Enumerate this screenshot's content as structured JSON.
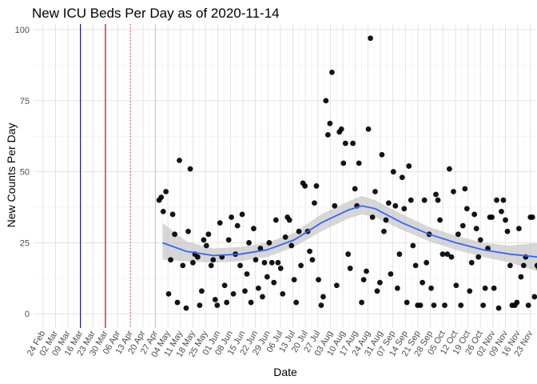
{
  "chart_data": {
    "type": "scatter",
    "title": "New ICU Beds Per Day as of 2020-11-14",
    "xlabel": "Date",
    "ylabel": "New Counts Per Day",
    "ylim": [
      -5,
      102
    ],
    "y_ticks": [
      0,
      25,
      50,
      75,
      100
    ],
    "x_ticks": [
      "24 Feb",
      "02 Mar",
      "09 Mar",
      "16 Mar",
      "23 Mar",
      "30 Mar",
      "06 Apr",
      "13 Apr",
      "20 Apr",
      "27 Apr",
      "04 May",
      "11 May",
      "18 May",
      "25 May",
      "01 Jun",
      "08 Jun",
      "15 Jun",
      "22 Jun",
      "29 Jun",
      "06 Jul",
      "13 Jul",
      "20 Jul",
      "27 Jul",
      "03 Aug",
      "10 Aug",
      "17 Aug",
      "24 Aug",
      "31 Aug",
      "07 Sep",
      "14 Sep",
      "21 Sep",
      "28 Sep",
      "05 Oct",
      "12 Oct",
      "19 Oct",
      "26 Oct",
      "02 Nov",
      "09 Nov",
      "16 Nov",
      "23 Nov"
    ],
    "grid": true,
    "vlines": [
      {
        "label": "16 Mar",
        "color": "#191970",
        "style": "solid"
      },
      {
        "label": "30 Mar",
        "color": "#cc0000",
        "style": "solid"
      },
      {
        "label": "13 Apr",
        "color": "#e05050",
        "style": "dotted"
      },
      {
        "label": "27 Apr",
        "color": "#f4b0b0",
        "style": "solid"
      }
    ],
    "colors": {
      "points": "#000000",
      "smooth_line": "#3366ff",
      "ribbon": "#bebebe"
    },
    "points": [
      {
        "x": 26.0,
        "y": 40
      },
      {
        "x": 26.3,
        "y": 41
      },
      {
        "x": 26.6,
        "y": 36
      },
      {
        "x": 27.0,
        "y": 43
      },
      {
        "x": 27.4,
        "y": 7
      },
      {
        "x": 27.7,
        "y": 19
      },
      {
        "x": 28.0,
        "y": 35
      },
      {
        "x": 28.3,
        "y": 28
      },
      {
        "x": 28.7,
        "y": 4
      },
      {
        "x": 29.0,
        "y": 54
      },
      {
        "x": 29.5,
        "y": 17
      },
      {
        "x": 30.0,
        "y": 2
      },
      {
        "x": 30.3,
        "y": 29
      },
      {
        "x": 30.6,
        "y": 51
      },
      {
        "x": 31.0,
        "y": 18
      },
      {
        "x": 31.3,
        "y": 21
      },
      {
        "x": 31.7,
        "y": 20
      },
      {
        "x": 32.0,
        "y": 3
      },
      {
        "x": 32.3,
        "y": 8
      },
      {
        "x": 32.6,
        "y": 26
      },
      {
        "x": 33.0,
        "y": 24
      },
      {
        "x": 33.3,
        "y": 28
      },
      {
        "x": 33.7,
        "y": 17
      },
      {
        "x": 34.0,
        "y": 19
      },
      {
        "x": 34.3,
        "y": 5
      },
      {
        "x": 34.6,
        "y": 3
      },
      {
        "x": 35.0,
        "y": 32
      },
      {
        "x": 35.3,
        "y": 20
      },
      {
        "x": 35.7,
        "y": 10
      },
      {
        "x": 36.0,
        "y": 4
      },
      {
        "x": 36.3,
        "y": 26
      },
      {
        "x": 36.7,
        "y": 34
      },
      {
        "x": 37.0,
        "y": 7
      },
      {
        "x": 37.3,
        "y": 21
      },
      {
        "x": 37.6,
        "y": 31
      },
      {
        "x": 38.0,
        "y": 17
      },
      {
        "x": 38.3,
        "y": 35
      },
      {
        "x": 38.7,
        "y": 8
      },
      {
        "x": 39.0,
        "y": 14
      },
      {
        "x": 39.3,
        "y": 25
      },
      {
        "x": 39.6,
        "y": 4
      },
      {
        "x": 40.0,
        "y": 30
      },
      {
        "x": 40.3,
        "y": 19
      },
      {
        "x": 40.7,
        "y": 9
      },
      {
        "x": 41.0,
        "y": 23
      },
      {
        "x": 41.3,
        "y": 6
      },
      {
        "x": 41.6,
        "y": 18
      },
      {
        "x": 42.0,
        "y": 13
      },
      {
        "x": 42.3,
        "y": 25
      },
      {
        "x": 42.7,
        "y": 18
      },
      {
        "x": 43.0,
        "y": 11
      },
      {
        "x": 43.3,
        "y": 33
      },
      {
        "x": 43.6,
        "y": 18
      },
      {
        "x": 44.0,
        "y": 16
      },
      {
        "x": 44.3,
        "y": 7
      },
      {
        "x": 44.7,
        "y": 27
      },
      {
        "x": 45.0,
        "y": 34
      },
      {
        "x": 45.3,
        "y": 33
      },
      {
        "x": 45.6,
        "y": 24
      },
      {
        "x": 46.0,
        "y": 12
      },
      {
        "x": 46.3,
        "y": 4
      },
      {
        "x": 46.7,
        "y": 29
      },
      {
        "x": 47.0,
        "y": 17
      },
      {
        "x": 47.3,
        "y": 46
      },
      {
        "x": 47.6,
        "y": 45
      },
      {
        "x": 48.0,
        "y": 29
      },
      {
        "x": 48.3,
        "y": 22
      },
      {
        "x": 48.7,
        "y": 19
      },
      {
        "x": 49.0,
        "y": 39
      },
      {
        "x": 49.3,
        "y": 45
      },
      {
        "x": 49.6,
        "y": 12
      },
      {
        "x": 50.0,
        "y": 3
      },
      {
        "x": 50.3,
        "y": 6
      },
      {
        "x": 50.7,
        "y": 75
      },
      {
        "x": 51.0,
        "y": 63
      },
      {
        "x": 51.3,
        "y": 67
      },
      {
        "x": 51.6,
        "y": 85
      },
      {
        "x": 52.0,
        "y": 38
      },
      {
        "x": 52.3,
        "y": 10
      },
      {
        "x": 52.7,
        "y": 64
      },
      {
        "x": 53.0,
        "y": 65
      },
      {
        "x": 53.3,
        "y": 53
      },
      {
        "x": 53.6,
        "y": 60
      },
      {
        "x": 54.0,
        "y": 21
      },
      {
        "x": 54.3,
        "y": 16
      },
      {
        "x": 54.7,
        "y": 60
      },
      {
        "x": 55.0,
        "y": 44
      },
      {
        "x": 55.3,
        "y": 38
      },
      {
        "x": 55.6,
        "y": 53
      },
      {
        "x": 56.0,
        "y": 4
      },
      {
        "x": 56.3,
        "y": 12
      },
      {
        "x": 56.7,
        "y": 15
      },
      {
        "x": 57.0,
        "y": 65
      },
      {
        "x": 57.3,
        "y": 97
      },
      {
        "x": 57.6,
        "y": 34
      },
      {
        "x": 58.0,
        "y": 43
      },
      {
        "x": 58.3,
        "y": 8
      },
      {
        "x": 58.7,
        "y": 11
      },
      {
        "x": 59.0,
        "y": 56
      },
      {
        "x": 59.3,
        "y": 29
      },
      {
        "x": 59.6,
        "y": 33
      },
      {
        "x": 60.0,
        "y": 39
      },
      {
        "x": 60.3,
        "y": 14
      },
      {
        "x": 60.7,
        "y": 50
      },
      {
        "x": 61.0,
        "y": 38
      },
      {
        "x": 61.3,
        "y": 9
      },
      {
        "x": 61.6,
        "y": 21
      },
      {
        "x": 62.0,
        "y": 48
      },
      {
        "x": 62.3,
        "y": 37
      },
      {
        "x": 62.7,
        "y": 4
      },
      {
        "x": 63.0,
        "y": 52
      },
      {
        "x": 63.3,
        "y": 40
      },
      {
        "x": 63.6,
        "y": 24
      },
      {
        "x": 64.0,
        "y": 17
      },
      {
        "x": 64.3,
        "y": 3
      },
      {
        "x": 64.7,
        "y": 3
      },
      {
        "x": 65.0,
        "y": 11
      },
      {
        "x": 65.3,
        "y": 40
      },
      {
        "x": 65.6,
        "y": 18
      },
      {
        "x": 66.0,
        "y": 28
      },
      {
        "x": 66.3,
        "y": 9
      },
      {
        "x": 66.7,
        "y": 3
      },
      {
        "x": 67.0,
        "y": 42
      },
      {
        "x": 67.3,
        "y": 40
      },
      {
        "x": 67.6,
        "y": 33
      },
      {
        "x": 68.0,
        "y": 21
      },
      {
        "x": 68.3,
        "y": 3
      },
      {
        "x": 68.7,
        "y": 21
      },
      {
        "x": 69.0,
        "y": 51
      },
      {
        "x": 69.3,
        "y": 20
      },
      {
        "x": 69.6,
        "y": 43
      },
      {
        "x": 70.0,
        "y": 10
      },
      {
        "x": 70.3,
        "y": 28
      },
      {
        "x": 70.7,
        "y": 3
      },
      {
        "x": 71.0,
        "y": 31
      },
      {
        "x": 71.3,
        "y": 44
      },
      {
        "x": 71.6,
        "y": 37
      },
      {
        "x": 72.0,
        "y": 8
      },
      {
        "x": 72.3,
        "y": 18
      },
      {
        "x": 72.7,
        "y": 35
      },
      {
        "x": 73.0,
        "y": 30
      },
      {
        "x": 73.3,
        "y": 20
      },
      {
        "x": 73.6,
        "y": 26
      },
      {
        "x": 74.0,
        "y": 3
      },
      {
        "x": 74.3,
        "y": 9
      },
      {
        "x": 74.7,
        "y": 23
      },
      {
        "x": 75.0,
        "y": 34
      },
      {
        "x": 75.3,
        "y": 34
      },
      {
        "x": 75.6,
        "y": 9
      },
      {
        "x": 76.0,
        "y": 40
      },
      {
        "x": 76.3,
        "y": 2
      },
      {
        "x": 76.7,
        "y": 36
      },
      {
        "x": 77.0,
        "y": 40
      },
      {
        "x": 77.3,
        "y": 33
      },
      {
        "x": 77.6,
        "y": 29
      },
      {
        "x": 78.0,
        "y": 17
      },
      {
        "x": 78.3,
        "y": 3
      },
      {
        "x": 78.7,
        "y": 3
      },
      {
        "x": 79.0,
        "y": 4
      },
      {
        "x": 79.3,
        "y": 30
      },
      {
        "x": 79.6,
        "y": 13
      },
      {
        "x": 80.0,
        "y": 17
      },
      {
        "x": 80.3,
        "y": 20
      },
      {
        "x": 80.7,
        "y": 3
      },
      {
        "x": 81.0,
        "y": 34
      },
      {
        "x": 81.3,
        "y": 34
      },
      {
        "x": 81.6,
        "y": 6
      },
      {
        "x": 82.0,
        "y": 17
      },
      {
        "x": 82.3,
        "y": 16
      },
      {
        "x": 82.7,
        "y": 4
      },
      {
        "x": 83.0,
        "y": 2
      },
      {
        "x": 83.3,
        "y": 41
      },
      {
        "x": 83.6,
        "y": 33
      },
      {
        "x": 84.0,
        "y": 20
      },
      {
        "x": 84.3,
        "y": 20
      },
      {
        "x": 84.6,
        "y": 9
      }
    ],
    "smooth": [
      {
        "x": 26.5,
        "y": 25
      },
      {
        "x": 30,
        "y": 22
      },
      {
        "x": 34,
        "y": 20.5
      },
      {
        "x": 38,
        "y": 21
      },
      {
        "x": 42,
        "y": 22.5
      },
      {
        "x": 46,
        "y": 26
      },
      {
        "x": 50,
        "y": 32
      },
      {
        "x": 54,
        "y": 36.5
      },
      {
        "x": 56,
        "y": 38
      },
      {
        "x": 58,
        "y": 37
      },
      {
        "x": 62,
        "y": 32
      },
      {
        "x": 66,
        "y": 28
      },
      {
        "x": 70,
        "y": 25
      },
      {
        "x": 74,
        "y": 22.5
      },
      {
        "x": 78,
        "y": 21
      },
      {
        "x": 82,
        "y": 20
      },
      {
        "x": 84.5,
        "y": 19.5
      }
    ],
    "ribbon_lower": [
      19,
      18.5,
      18,
      18.5,
      20,
      23.5,
      29,
      33.5,
      35,
      34,
      29.5,
      25.5,
      22.5,
      20,
      18,
      15,
      11.5
    ],
    "ribbon_upper": [
      32,
      25.5,
      23,
      23.5,
      25,
      28.5,
      35,
      39.5,
      41.5,
      40,
      35,
      30.5,
      27.5,
      25,
      24,
      25,
      27.5
    ]
  }
}
